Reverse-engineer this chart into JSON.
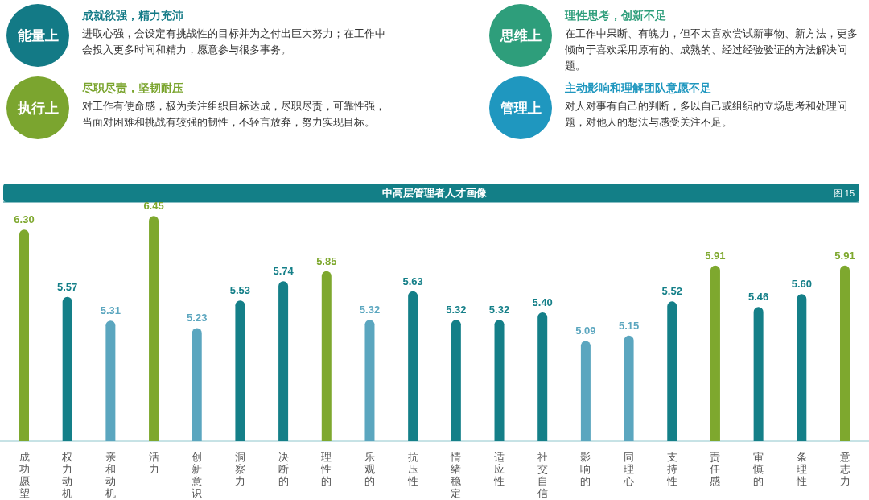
{
  "chart_data": [
    {
      "type": "other",
      "annotations": [
        "能量上",
        "成就欲强，精力充沛",
        "进取心强，会设定有挑战性的目标并为之付出巨大努力；在工作中会投入更多时间和精力，愿意参与很多事务。",
        "思维上",
        "理性思考，创新不足",
        "在工作中果断、有魄力，但不太喜欢尝试新事物、新方法，更多倾向于喜欢采用原有的、成熟的、经过经验验证的方法解决问题。",
        "执行上",
        "尽职尽责，坚韧耐压",
        "对工作有使命感，极为关注组织目标达成，尽职尽责，可靠性强，当面对困难和挑战有较强的韧性，不轻言放弃，努力实现目标。",
        "管理上",
        "主动影响和理解团队意愿不足",
        "对人对事有自己的判断，多以自己或组织的立场思考和处理问题，对他人的想法与感受关注不足。"
      ]
    },
    {
      "type": "bar",
      "title": "中高层管理者人才画像",
      "annotations": [
        "图 15"
      ],
      "categories": [
        "成功愿望",
        "权力动机",
        "亲和动机",
        "活力",
        "创新意识",
        "洞察力",
        "决断的",
        "理性的",
        "乐观的",
        "抗压性",
        "情绪稳定性",
        "适应性",
        "社交自信",
        "影响的",
        "同理心",
        "支持性",
        "责任感",
        "审慎的",
        "条理性",
        "意志力"
      ],
      "values": [
        6.3,
        5.57,
        5.31,
        6.45,
        5.23,
        5.53,
        5.74,
        5.85,
        5.32,
        5.63,
        5.32,
        5.32,
        5.4,
        5.09,
        5.15,
        5.52,
        5.91,
        5.46,
        5.6,
        5.91
      ],
      "colors": [
        "#7ea82e",
        "#147f88",
        "#5ba6bf",
        "#7ea82e",
        "#5ba6bf",
        "#147f88",
        "#147f88",
        "#7ea82e",
        "#5ba6bf",
        "#147f88",
        "#147f88",
        "#147f88",
        "#147f88",
        "#5ba6bf",
        "#5ba6bf",
        "#147f88",
        "#7ea82e",
        "#147f88",
        "#147f88",
        "#7ea82e"
      ],
      "ylim": [
        4,
        6.6
      ],
      "value_labels": [
        "6.30",
        "5.57",
        "5.31",
        "6.45",
        "5.23",
        "5.53",
        "5.74",
        "5.85",
        "5.32",
        "5.63",
        "5.32",
        "5.32",
        "5.40",
        "5.09",
        "5.15",
        "5.52",
        "5.91",
        "5.46",
        "5.60",
        "5.91"
      ]
    }
  ]
}
